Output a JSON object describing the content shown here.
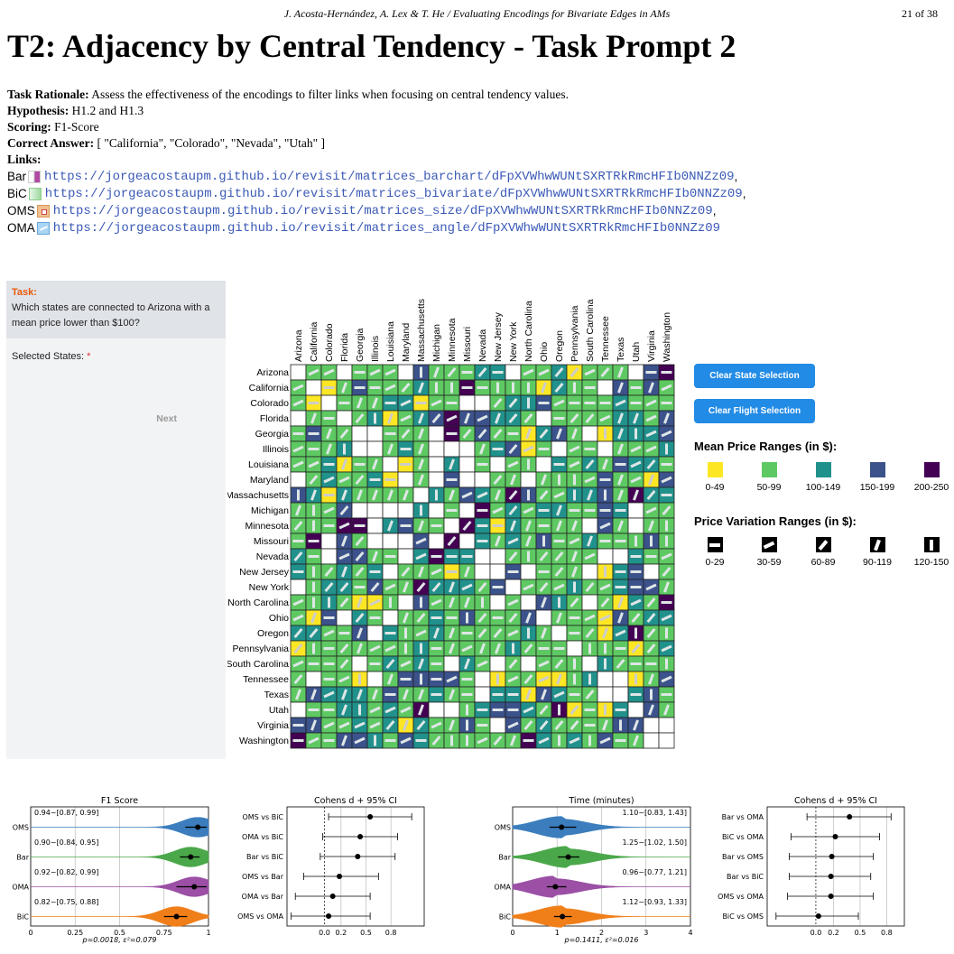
{
  "header": {
    "running_title": "J. Acosta-Hernández, A. Lex & T. He / Evaluating Encodings for Bivariate Edges in AMs",
    "page": "21 of 38"
  },
  "title": "T2: Adjacency by Central Tendency - Task Prompt 2",
  "meta": {
    "rationale_label": "Task Rationale:",
    "rationale": "Assess the effectiveness of the encodings to filter links when focusing on central tendency values.",
    "hypothesis_label": "Hypothesis:",
    "hypothesis": "H1.2 and H1.3",
    "scoring_label": "Scoring:",
    "scoring": "F1-Score",
    "answer_label": "Correct Answer:",
    "answer": "[ \"California\", \"Colorado\", \"Nevada\", \"Utah\" ]",
    "links_label": "Links:"
  },
  "links": [
    {
      "name": "Bar",
      "icon": "bar-icon",
      "url": "https://jorgeacostaupm.github.io/revisit/matrices_barchart/dFpXVWhwWUNtSXRTRkRmcHFIb0NNZz09",
      "sep": ","
    },
    {
      "name": "BiC",
      "icon": "bic-icon",
      "url": "https://jorgeacostaupm.github.io/revisit/matrices_bivariate/dFpXVWhwWUNtSXRTRkRmcHFIb0NNZz09",
      "sep": ","
    },
    {
      "name": "OMS",
      "icon": "oms-icon",
      "url": "https://jorgeacostaupm.github.io/revisit/matrices_size/dFpXVWhwWUNtSXRTRkRmcHFIb0NNZz09",
      "sep": ","
    },
    {
      "name": "OMA",
      "icon": "oma-icon",
      "url": "https://jorgeacostaupm.github.io/revisit/matrices_angle/dFpXVWhwWUNtSXRTRkRmcHFIb0NNZz09",
      "sep": ""
    }
  ],
  "task": {
    "label": "Task:",
    "question": "Which states are connected to Arizona with a mean price lower than $100?",
    "selected_label": "Selected States:",
    "required_mark": "*",
    "next_label": "Next"
  },
  "matrix": {
    "states": [
      "Arizona",
      "California",
      "Colorado",
      "Florida",
      "Georgia",
      "Illinois",
      "Louisiana",
      "Maryland",
      "Massachusetts",
      "Michigan",
      "Minnesota",
      "Missouri",
      "Nevada",
      "New Jersey",
      "New York",
      "North Carolina",
      "Ohio",
      "Oregon",
      "Pennsylvania",
      "South Carolina",
      "Tennessee",
      "Texas",
      "Utah",
      "Virginia",
      "Washington"
    ],
    "colors": {
      "0": "#ffffff",
      "1": "#fde725",
      "2": "#5ec962",
      "3": "#21918c",
      "4": "#3b528b",
      "5": "#440154"
    }
  },
  "buttons": {
    "clear_states": "Clear State Selection",
    "clear_flights": "Clear Flight Selection"
  },
  "mean_legend": {
    "title": "Mean Price Ranges (in $):",
    "items": [
      {
        "label": "0-49",
        "color": "#fde725"
      },
      {
        "label": "50-99",
        "color": "#5ec962"
      },
      {
        "label": "100-149",
        "color": "#21918c"
      },
      {
        "label": "150-199",
        "color": "#3b528b"
      },
      {
        "label": "200-250",
        "color": "#440154"
      }
    ]
  },
  "variation_legend": {
    "title": "Price Variation Ranges (in $):",
    "items": [
      {
        "label": "0-29",
        "angle": 0
      },
      {
        "label": "30-59",
        "angle": -25
      },
      {
        "label": "60-89",
        "angle": -50
      },
      {
        "label": "90-119",
        "angle": -70
      },
      {
        "label": "120-150",
        "angle": -90
      }
    ]
  },
  "plots": {
    "f1": {
      "title": "F1 Score",
      "groups": [
        {
          "name": "OMS",
          "color": "#3b7dbd",
          "label": "0.94~[0.87, 0.99]",
          "mean": 0.94,
          "ci": [
            0.87,
            0.99
          ]
        },
        {
          "name": "Bar",
          "color": "#4aa84a",
          "label": "0.90~[0.84, 0.95]",
          "mean": 0.9,
          "ci": [
            0.84,
            0.95
          ]
        },
        {
          "name": "OMA",
          "color": "#9b4fa5",
          "label": "0.92~[0.82, 0.99]",
          "mean": 0.92,
          "ci": [
            0.82,
            0.99
          ]
        },
        {
          "name": "BiC",
          "color": "#f07f1a",
          "label": "0.82~[0.75, 0.88]",
          "mean": 0.82,
          "ci": [
            0.75,
            0.88
          ]
        }
      ],
      "ticks": [
        "0",
        "0.25",
        "0.5",
        "0.75",
        "1"
      ],
      "xlim": [
        0,
        1
      ],
      "footnote": "p=0.0018, ε²=0.079"
    },
    "cd1": {
      "title": "Cohens d + 95% CI",
      "rows": [
        {
          "name": "OMS vs BiC",
          "d": 0.55,
          "ci": [
            0.05,
            1.05
          ]
        },
        {
          "name": "OMA vs BiC",
          "d": 0.43,
          "ci": [
            -0.02,
            0.88
          ]
        },
        {
          "name": "Bar vs BiC",
          "d": 0.4,
          "ci": [
            -0.05,
            0.85
          ]
        },
        {
          "name": "OMS vs Bar",
          "d": 0.18,
          "ci": [
            -0.25,
            0.65
          ]
        },
        {
          "name": "OMA vs Bar",
          "d": 0.1,
          "ci": [
            -0.35,
            0.55
          ]
        },
        {
          "name": "OMS vs OMA",
          "d": 0.05,
          "ci": [
            -0.4,
            0.55
          ]
        }
      ],
      "ticks": [
        "0.0",
        "0.2",
        "0.5",
        "0.8"
      ],
      "xlim": [
        -0.45,
        1.2
      ]
    },
    "time": {
      "title": "Time (minutes)",
      "groups": [
        {
          "name": "OMS",
          "color": "#3b7dbd",
          "label": "1.10~[0.83, 1.43]",
          "mean": 1.1,
          "ci": [
            0.83,
            1.43
          ]
        },
        {
          "name": "Bar",
          "color": "#4aa84a",
          "label": "1.25~[1.02, 1.50]",
          "mean": 1.25,
          "ci": [
            1.02,
            1.5
          ]
        },
        {
          "name": "OMA",
          "color": "#9b4fa5",
          "label": "0.96~[0.77, 1.21]",
          "mean": 0.96,
          "ci": [
            0.77,
            1.21
          ]
        },
        {
          "name": "BiC",
          "color": "#f07f1a",
          "label": "1.12~[0.93, 1.33]",
          "mean": 1.12,
          "ci": [
            0.93,
            1.33
          ]
        }
      ],
      "ticks": [
        "0",
        "1",
        "2",
        "3",
        "4"
      ],
      "xlim": [
        0,
        4
      ],
      "footnote": "p=0.1411, ε²=0.016"
    },
    "cd2": {
      "title": "Cohens d + 95% CI",
      "rows": [
        {
          "name": "Bar vs OMA",
          "d": 0.38,
          "ci": [
            -0.1,
            0.85
          ]
        },
        {
          "name": "BiC vs OMA",
          "d": 0.22,
          "ci": [
            -0.28,
            0.72
          ]
        },
        {
          "name": "Bar vs OMS",
          "d": 0.18,
          "ci": [
            -0.3,
            0.65
          ]
        },
        {
          "name": "Bar vs BiC",
          "d": 0.17,
          "ci": [
            -0.3,
            0.62
          ]
        },
        {
          "name": "OMS vs OMA",
          "d": 0.17,
          "ci": [
            -0.32,
            0.65
          ]
        },
        {
          "name": "BiC vs OMS",
          "d": 0.03,
          "ci": [
            -0.45,
            0.48
          ]
        }
      ],
      "ticks": [
        "0.0",
        "0.2",
        "0.5",
        "0.8"
      ],
      "xlim": [
        -0.55,
        1.0
      ]
    }
  }
}
